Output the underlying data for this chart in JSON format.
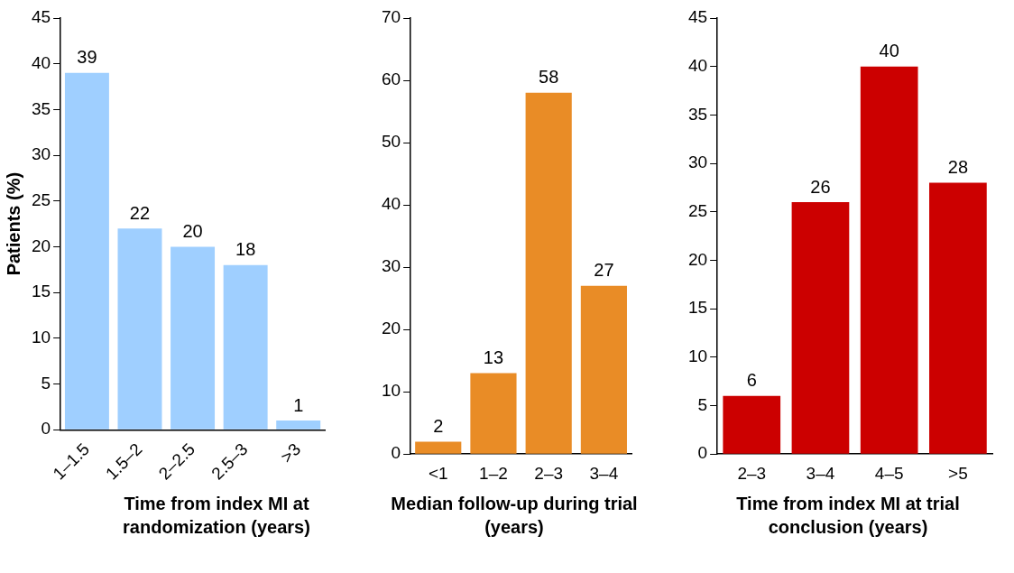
{
  "chart_data": [
    {
      "type": "bar",
      "xlabel": "Time from index MI at randomization (years)",
      "ylabel": "Patients (%)",
      "categories": [
        "1–1.5",
        "1.5–2",
        "2–2.5",
        "2.5–3",
        ">3"
      ],
      "values": [
        39,
        22,
        20,
        18,
        1
      ],
      "color": "#9fcfff",
      "ylim": [
        0,
        45
      ],
      "yticks": [
        0,
        5,
        10,
        15,
        20,
        25,
        30,
        35,
        40,
        45
      ],
      "data_labels": true,
      "grid": false,
      "legend": false
    },
    {
      "type": "bar",
      "xlabel": "Median follow-up during trial (years)",
      "categories": [
        "<1",
        "1–2",
        "2–3",
        "3–4"
      ],
      "values": [
        2,
        13,
        58,
        27
      ],
      "color": "#e98c26",
      "ylim": [
        0,
        70
      ],
      "yticks": [
        0,
        10,
        20,
        30,
        40,
        50,
        60,
        70
      ],
      "data_labels": true,
      "grid": false,
      "legend": false
    },
    {
      "type": "bar",
      "xlabel": "Time from index MI at trial conclusion (years)",
      "categories": [
        "2–3",
        "3–4",
        "4–5",
        ">5"
      ],
      "values": [
        6,
        26,
        40,
        28
      ],
      "color": "#cc0000",
      "ylim": [
        0,
        45
      ],
      "yticks": [
        0,
        5,
        10,
        15,
        20,
        25,
        30,
        35,
        40,
        45
      ],
      "data_labels": true,
      "grid": false,
      "legend": false
    }
  ]
}
